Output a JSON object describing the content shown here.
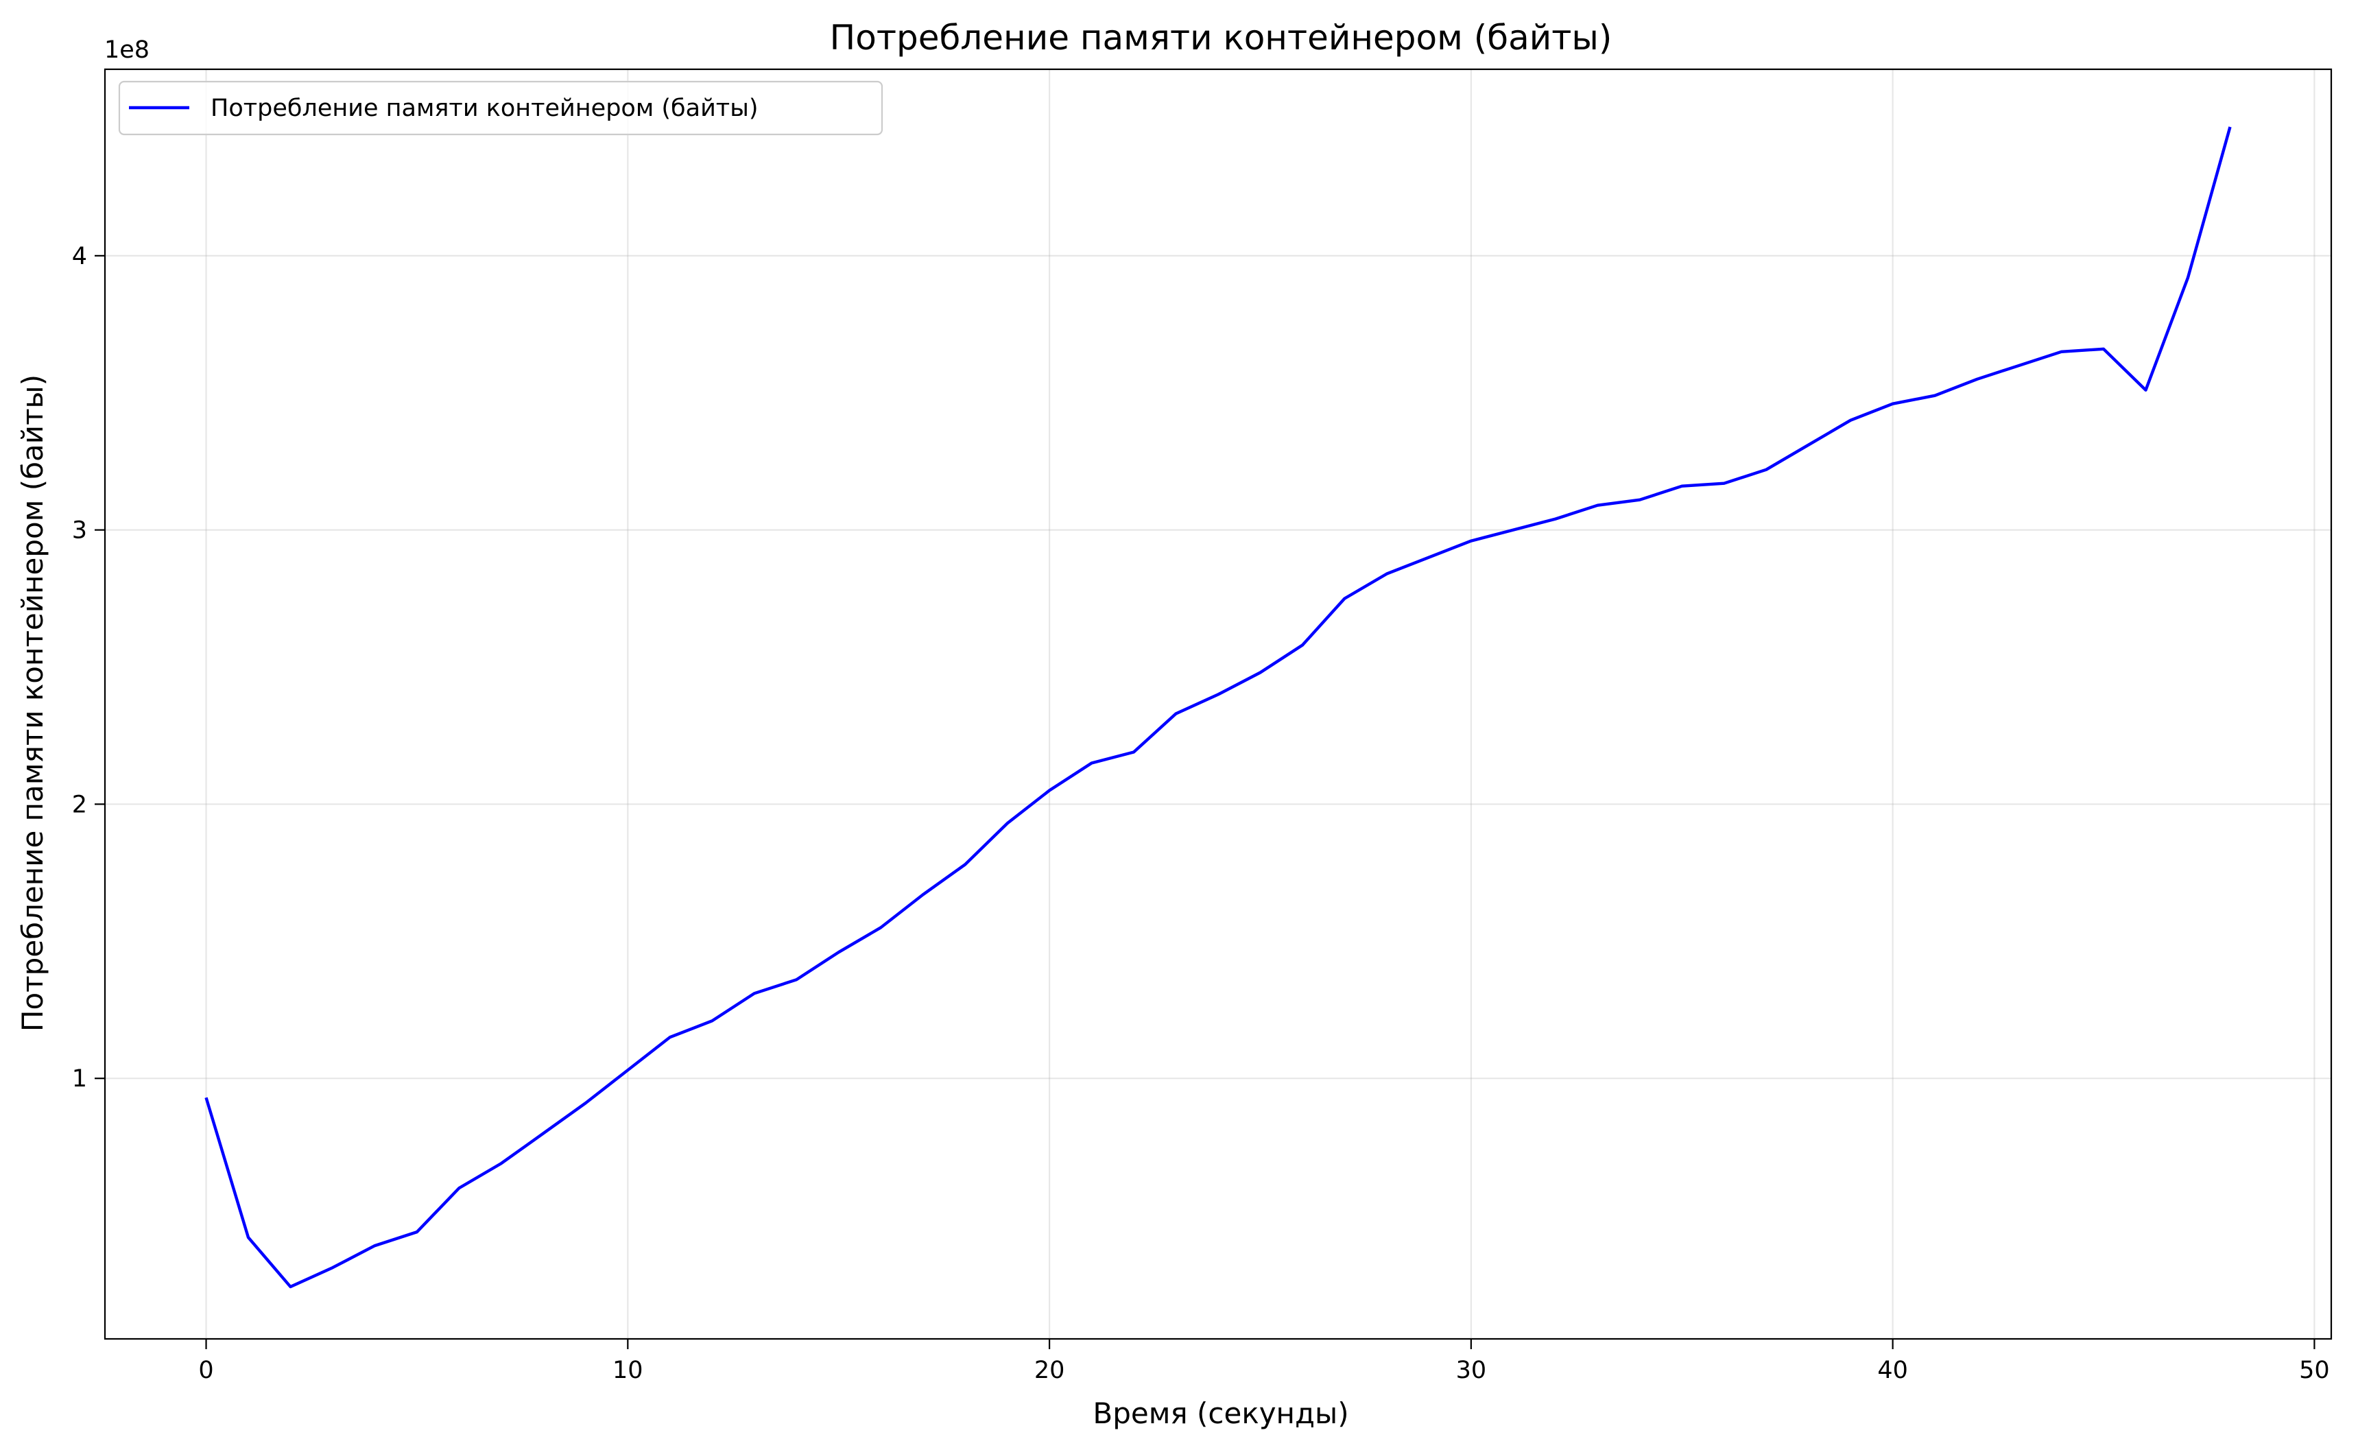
{
  "chart_data": {
    "type": "line",
    "title": "Потребление памяти контейнером  (байты)",
    "xlabel": "Время (секунды)",
    "ylabel": "Потребление памяти контейнером  (байты)",
    "y_offset_label": "1e8",
    "y_scale_factor": 100000000,
    "xlim": [
      -2.4,
      50.4
    ],
    "ylim": [
      5000000,
      468000000
    ],
    "x_ticks": [
      0,
      10,
      20,
      30,
      40,
      50
    ],
    "x_tick_labels": [
      "0",
      "10",
      "20",
      "30",
      "40",
      "50"
    ],
    "y_ticks": [
      100000000,
      200000000,
      300000000,
      400000000
    ],
    "y_tick_labels": [
      "1",
      "2",
      "3",
      "4"
    ],
    "grid": true,
    "legend_position": "top-left",
    "colors": {
      "line": "#0000ff"
    },
    "series": [
      {
        "name": "Потребление памяти контейнером  (байты)",
        "x": [
          0,
          1,
          2,
          3,
          4,
          5,
          6,
          7,
          8,
          9,
          10,
          11,
          12,
          13,
          14,
          15,
          16,
          17,
          18,
          19,
          20,
          21,
          22,
          23,
          24,
          25,
          26,
          27,
          28,
          29,
          30,
          31,
          32,
          33,
          34,
          35,
          36,
          37,
          38,
          39,
          40,
          41,
          42,
          43,
          44,
          45,
          46,
          47,
          48
        ],
        "y": [
          93000000,
          42000000,
          24000000,
          31000000,
          39000000,
          44000000,
          60000000,
          69000000,
          80000000,
          91000000,
          103000000,
          115000000,
          121000000,
          131000000,
          136000000,
          146000000,
          155000000,
          167000000,
          178000000,
          193000000,
          205000000,
          215000000,
          219000000,
          233000000,
          240000000,
          248000000,
          258000000,
          275000000,
          284000000,
          290000000,
          296000000,
          300000000,
          304000000,
          309000000,
          311000000,
          316000000,
          317000000,
          322000000,
          331000000,
          340000000,
          346000000,
          349000000,
          355000000,
          360000000,
          365000000,
          366000000,
          351000000,
          392000000,
          447000000
        ]
      }
    ]
  }
}
